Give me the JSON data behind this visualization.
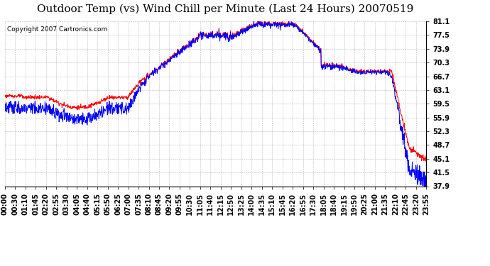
{
  "title": "Outdoor Temp (vs) Wind Chill per Minute (Last 24 Hours) 20070519",
  "copyright_text": "Copyright 2007 Cartronics.com",
  "y_min": 37.9,
  "y_max": 81.1,
  "y_ticks": [
    37.9,
    41.5,
    45.1,
    48.7,
    52.3,
    55.9,
    59.5,
    63.1,
    66.7,
    70.3,
    73.9,
    77.5,
    81.1
  ],
  "x_labels": [
    "00:00",
    "00:30",
    "01:10",
    "01:45",
    "02:20",
    "02:55",
    "03:30",
    "04:05",
    "04:40",
    "05:15",
    "05:50",
    "06:25",
    "07:00",
    "07:35",
    "08:10",
    "08:45",
    "09:20",
    "09:55",
    "10:30",
    "11:05",
    "11:40",
    "12:15",
    "12:50",
    "13:25",
    "14:00",
    "14:35",
    "15:10",
    "15:45",
    "16:20",
    "16:55",
    "17:30",
    "18:05",
    "18:40",
    "19:15",
    "19:50",
    "20:25",
    "21:00",
    "21:35",
    "22:10",
    "22:45",
    "23:20",
    "23:55"
  ],
  "background_color": "#ffffff",
  "plot_bg_color": "#ffffff",
  "grid_color": "#aaaaaa",
  "line_color_red": "#ff0000",
  "line_color_blue": "#0000ff",
  "title_fontsize": 11,
  "tick_fontsize": 7,
  "copyright_fontsize": 6.5
}
